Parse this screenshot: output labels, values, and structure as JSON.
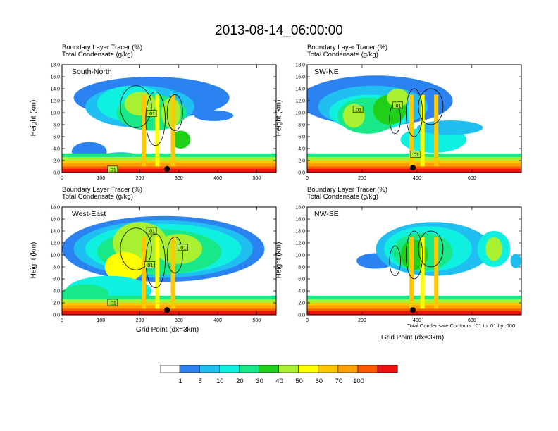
{
  "title": "2013-08-14_06:00:00",
  "header_line1": "Boundary Layer Tracer   (%)",
  "header_line2": "Total Condensate   (g/kg)",
  "ylabel": "Height (km)",
  "xlabel": "Grid Point (dx=3km)",
  "contour_note": "Total Condensate Contours: .01 to .01 by .000",
  "colorbar": {
    "colors": [
      "#ffffff",
      "#2b83f2",
      "#20bff2",
      "#10f0e0",
      "#18e888",
      "#20d018",
      "#a8f030",
      "#ffff00",
      "#ffc800",
      "#ffa000",
      "#ff5a00",
      "#f01010"
    ],
    "labels": [
      "1",
      "5",
      "10",
      "20",
      "30",
      "40",
      "50",
      "60",
      "70",
      "100"
    ]
  },
  "chart_data": [
    {
      "type": "heatmap",
      "name": "South-North",
      "title": "South-North",
      "xlabel": "",
      "ylabel": "Height (km)",
      "xlim": [
        0,
        550
      ],
      "ylim": [
        0,
        18
      ],
      "xticks": [
        0,
        100,
        200,
        300,
        400,
        500
      ],
      "yticks": [
        "0.0",
        "2.0",
        "4.0",
        "6.0",
        "8.0",
        "10.0",
        "12.0",
        "14.0",
        "16.0",
        "18.0"
      ],
      "contour_labels": [
        {
          "x": 230,
          "y": 9.8,
          "text": ".01"
        },
        {
          "x": 130,
          "y": 0.5,
          "text": ".01"
        }
      ],
      "marker": {
        "x": 270,
        "y": 0.6
      }
    },
    {
      "type": "heatmap",
      "name": "SW-NE",
      "title": "SW-NE",
      "xlabel": "",
      "ylabel": "Height (km)",
      "xlim": [
        0,
        780
      ],
      "ylim": [
        0,
        18
      ],
      "xticks": [
        0,
        200,
        400,
        600
      ],
      "yticks": [
        "0.0",
        "2.0",
        "4.0",
        "6.0",
        "8.0",
        "10.0",
        "12.0",
        "14.0",
        "16.0",
        "18.0"
      ],
      "contour_labels": [
        {
          "x": 185,
          "y": 10.5,
          "text": ".01"
        },
        {
          "x": 330,
          "y": 11.2,
          "text": ".01"
        },
        {
          "x": 395,
          "y": 3.0,
          "text": ".01"
        }
      ],
      "marker": {
        "x": 385,
        "y": 0.8
      }
    },
    {
      "type": "heatmap",
      "name": "West-East",
      "title": "West-East",
      "xlabel": "Grid Point (dx=3km)",
      "ylabel": "Height (km)",
      "xlim": [
        0,
        550
      ],
      "ylim": [
        0,
        18
      ],
      "xticks": [
        0,
        100,
        200,
        300,
        400,
        500
      ],
      "yticks": [
        "0.0",
        "2.0",
        "4.0",
        "6.0",
        "8.0",
        "10.0",
        "12.0",
        "14.0",
        "16.0",
        "18.0"
      ],
      "contour_labels": [
        {
          "x": 230,
          "y": 14.0,
          "text": ".01"
        },
        {
          "x": 310,
          "y": 11.2,
          "text": ".01"
        },
        {
          "x": 225,
          "y": 8.3,
          "text": ".01"
        },
        {
          "x": 130,
          "y": 2.0,
          "text": ".01"
        }
      ],
      "marker": {
        "x": 270,
        "y": 0.8
      }
    },
    {
      "type": "heatmap",
      "name": "NW-SE",
      "title": "NW-SE",
      "xlabel": "Grid Point (dx=3km)",
      "ylabel": "Height (km)",
      "xlim": [
        0,
        780
      ],
      "ylim": [
        0,
        18
      ],
      "xticks": [
        0,
        200,
        400,
        600
      ],
      "yticks": [
        "0.0",
        "2.0",
        "4.0",
        "6.0",
        "8.0",
        "10.0",
        "12.0",
        "14.0",
        "16.0",
        "18.0"
      ],
      "contour_labels": [],
      "marker": {
        "x": 385,
        "y": 0.8
      }
    }
  ]
}
